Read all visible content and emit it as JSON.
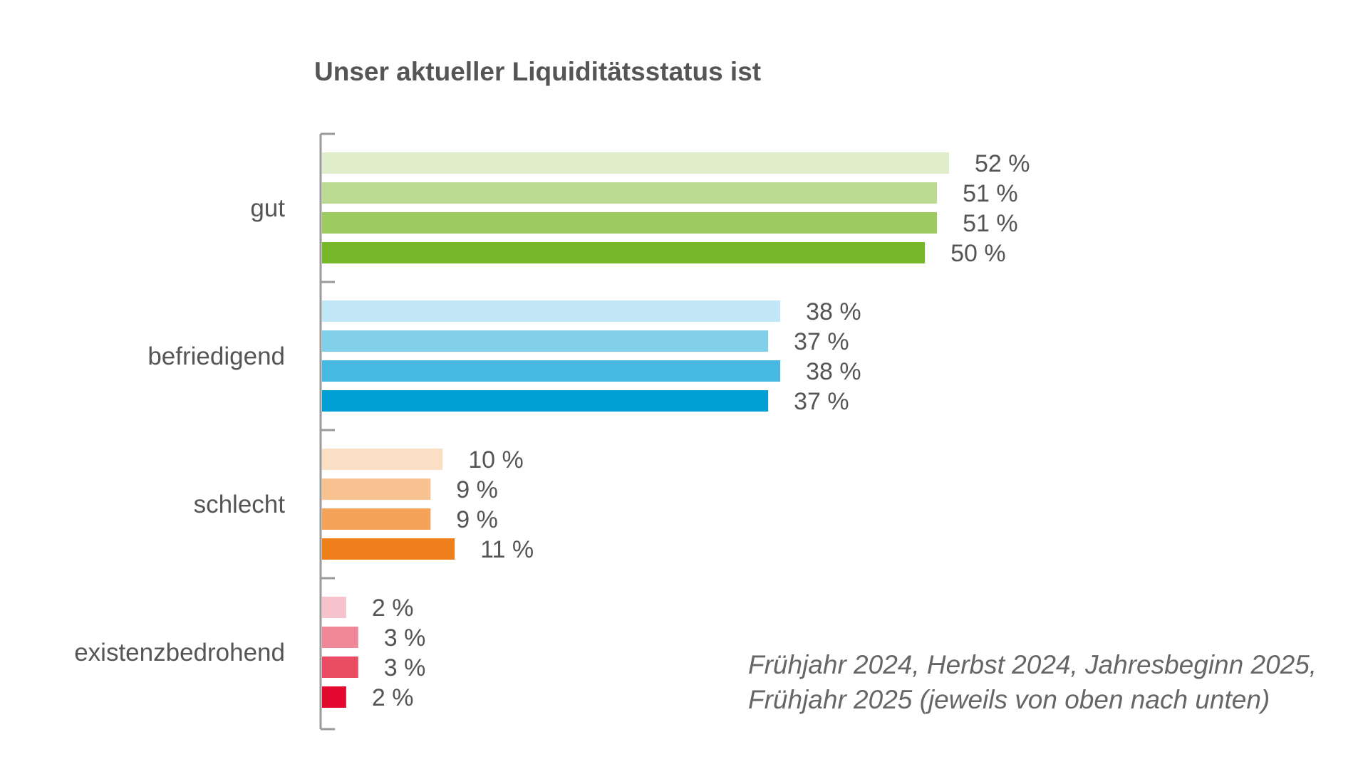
{
  "chart_data": {
    "type": "bar",
    "orientation": "horizontal",
    "title": "Unser aktueller Liquiditätsstatus ist",
    "categories": [
      "gut",
      "befriedigend",
      "schlecht",
      "existenzbedrohend"
    ],
    "series": [
      {
        "values": [
          52,
          38,
          10,
          2
        ]
      },
      {
        "values": [
          51,
          37,
          9,
          3
        ]
      },
      {
        "values": [
          51,
          38,
          9,
          3
        ]
      },
      {
        "values": [
          50,
          37,
          11,
          2
        ]
      }
    ],
    "value_labels": [
      [
        "52 %",
        "51 %",
        "51 %",
        "50 %"
      ],
      [
        "38 %",
        "37 %",
        "38 %",
        "37 %"
      ],
      [
        "10 %",
        "9 %",
        "9 %",
        "11 %"
      ],
      [
        "2 %",
        "3 %",
        "3 %",
        "2 %"
      ]
    ],
    "colors": [
      [
        "#dfedcb",
        "#bbdb93",
        "#9dcb5f",
        "#76b82a"
      ],
      [
        "#c1e7f6",
        "#82cfea",
        "#45b9e1",
        "#009fd4"
      ],
      [
        "#fbdfc5",
        "#f8c291",
        "#f4a359",
        "#ee7f1a"
      ],
      [
        "#f6c2cc",
        "#f08897",
        "#ea4c63",
        "#e2082e"
      ]
    ],
    "note": [
      "Frühjahr 2024, Herbst 2024, Jahresbeginn 2025,",
      "Frühjahr 2025 (jeweils von oben nach unten)"
    ],
    "xlim": [
      0,
      52
    ],
    "grid": false,
    "axis_color": "#9a9a9a"
  }
}
